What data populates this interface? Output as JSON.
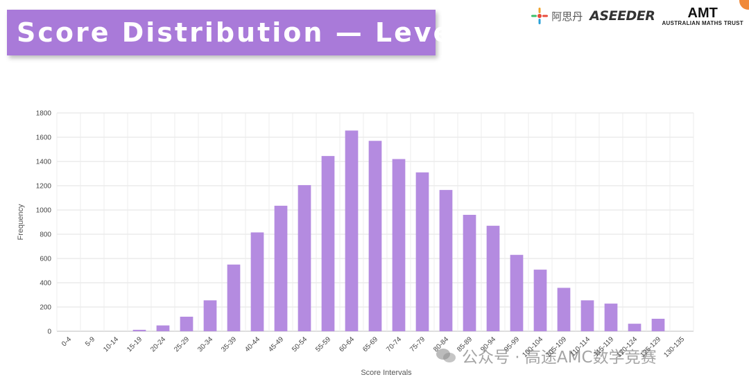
{
  "header": {
    "title": "Score Distribution — Level D"
  },
  "logos": {
    "chinese_text": "阿思丹",
    "aseeder": "ASEEDER",
    "amt_main": "AMT",
    "amt_sub": "AUSTRALIAN MATHS TRUST"
  },
  "watermark": {
    "text": "公众号 · 高途AMC数学竞赛"
  },
  "colors": {
    "bar": "#b48be0",
    "banner": "#a97ad9"
  },
  "chart_data": {
    "type": "bar",
    "xlabel": "Score Intervals",
    "ylabel": "Frequency",
    "ylim": [
      0,
      1800
    ],
    "yticks": [
      0,
      200,
      400,
      600,
      800,
      1000,
      1200,
      1400,
      1600,
      1800
    ],
    "grid": true,
    "categories": [
      "0-4",
      "5-9",
      "10-14",
      "15-19",
      "20-24",
      "25-29",
      "30-34",
      "35-39",
      "40-44",
      "45-49",
      "50-54",
      "55-59",
      "60-64",
      "65-69",
      "70-74",
      "75-79",
      "80-84",
      "85-89",
      "90-94",
      "95-99",
      "100-104",
      "105-109",
      "110-114",
      "115-119",
      "120-124",
      "125-129",
      "130-135"
    ],
    "values": [
      0,
      0,
      0,
      12,
      48,
      120,
      255,
      550,
      815,
      1035,
      1205,
      1445,
      1655,
      1570,
      1420,
      1310,
      1165,
      960,
      870,
      630,
      508,
      358,
      255,
      228,
      62,
      103,
      0
    ]
  }
}
